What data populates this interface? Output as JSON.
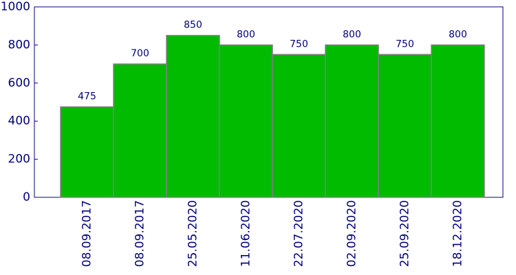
{
  "chart_data": {
    "type": "bar",
    "categories": [
      "08.09.2017",
      "08.09.2017",
      "25.05.2020",
      "11.06.2020",
      "22.07.2020",
      "02.09.2020",
      "25.09.2020",
      "18.12.2020"
    ],
    "values": [
      475,
      700,
      850,
      800,
      750,
      800,
      750,
      800
    ],
    "color": "#00bb00",
    "ylim": [
      0,
      1000
    ],
    "yticks": [
      0,
      200,
      400,
      600,
      800,
      1000
    ]
  }
}
